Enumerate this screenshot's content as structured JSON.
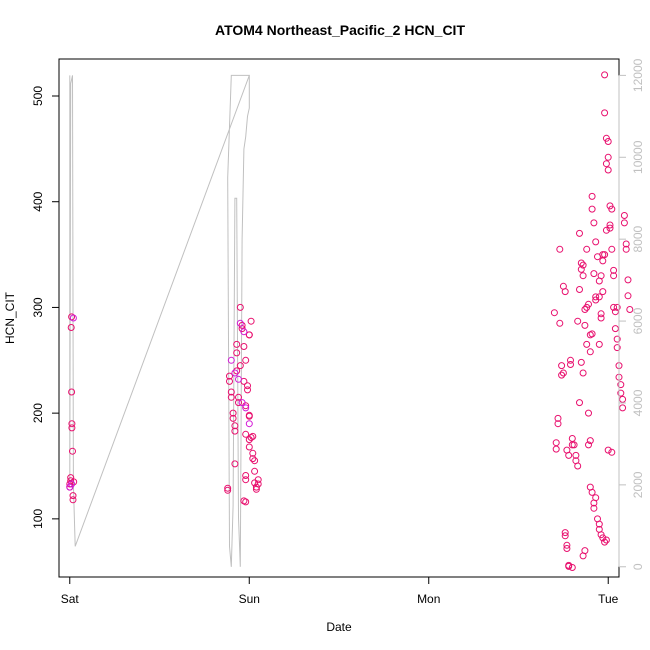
{
  "chart_data": {
    "type": "scatter",
    "title": "ATOM4 Northeast_Pacific_2 HCN_CIT",
    "xlabel": "Date",
    "ylabel": "HCN_CIT",
    "x_tick_labels": [
      "Sat",
      "Sun",
      "Mon",
      "Tue"
    ],
    "x_ticks": [
      0,
      1,
      2,
      3
    ],
    "x_unit": "days (Sat 00:00 = 0)",
    "xlim": [
      -0.06,
      3.06
    ],
    "ylim": [
      45,
      535
    ],
    "y_ticks": [
      100,
      200,
      300,
      400,
      500
    ],
    "y2_ticks": [
      0,
      2000,
      4000,
      6000,
      8000,
      10000,
      12000
    ],
    "y2lim": [
      -250,
      12400
    ],
    "grid": false,
    "series": [
      {
        "kind": "points",
        "color": "#e8106e",
        "points": [
          [
            0.0,
            130
          ],
          [
            0.0,
            133
          ],
          [
            0.005,
            136
          ],
          [
            0.005,
            139
          ],
          [
            0.008,
            281
          ],
          [
            0.01,
            291
          ],
          [
            0.01,
            220
          ],
          [
            0.012,
            186
          ],
          [
            0.012,
            190
          ],
          [
            0.015,
            164
          ],
          [
            0.018,
            122
          ],
          [
            0.018,
            118
          ],
          [
            0.022,
            135
          ],
          [
            0.88,
            127
          ],
          [
            0.88,
            129
          ],
          [
            0.89,
            230
          ],
          [
            0.89,
            235
          ],
          [
            0.9,
            215
          ],
          [
            0.9,
            220
          ],
          [
            0.91,
            200
          ],
          [
            0.91,
            195
          ],
          [
            0.92,
            188
          ],
          [
            0.92,
            183
          ],
          [
            0.93,
            240
          ],
          [
            0.93,
            257
          ],
          [
            0.93,
            265
          ],
          [
            0.94,
            215
          ],
          [
            0.94,
            210
          ],
          [
            0.95,
            245
          ],
          [
            0.95,
            300
          ],
          [
            0.96,
            280
          ],
          [
            0.96,
            283
          ],
          [
            0.97,
            263
          ],
          [
            0.97,
            230
          ],
          [
            0.98,
            207
          ],
          [
            0.98,
            180
          ],
          [
            0.98,
            250
          ],
          [
            0.99,
            222
          ],
          [
            0.99,
            226
          ],
          [
            1.0,
            198
          ],
          [
            1.0,
            197
          ],
          [
            1.0,
            175
          ],
          [
            1.0,
            168
          ],
          [
            0.97,
            117
          ],
          [
            0.98,
            116
          ],
          [
            0.98,
            141
          ],
          [
            0.98,
            137
          ],
          [
            1.0,
            274
          ],
          [
            1.0,
            274
          ],
          [
            1.01,
            287
          ],
          [
            1.01,
            177
          ],
          [
            1.02,
            178
          ],
          [
            1.02,
            162
          ],
          [
            1.02,
            157
          ],
          [
            1.03,
            155
          ],
          [
            1.03,
            145
          ],
          [
            1.03,
            134
          ],
          [
            1.04,
            130
          ],
          [
            1.04,
            128
          ],
          [
            1.05,
            137
          ],
          [
            1.05,
            133
          ],
          [
            0.92,
            152
          ],
          [
            2.7,
            295
          ],
          [
            2.71,
            172
          ],
          [
            2.71,
            166
          ],
          [
            2.72,
            190
          ],
          [
            2.72,
            195
          ],
          [
            2.73,
            355
          ],
          [
            2.73,
            285
          ],
          [
            2.74,
            245
          ],
          [
            2.74,
            236
          ],
          [
            2.75,
            238
          ],
          [
            2.75,
            320
          ],
          [
            2.76,
            315
          ],
          [
            2.76,
            84
          ],
          [
            2.76,
            87
          ],
          [
            2.77,
            75
          ],
          [
            2.77,
            72
          ],
          [
            2.77,
            165
          ],
          [
            2.78,
            160
          ],
          [
            2.78,
            55
          ],
          [
            2.78,
            56
          ],
          [
            2.79,
            250
          ],
          [
            2.79,
            246
          ],
          [
            2.8,
            176
          ],
          [
            2.8,
            170
          ],
          [
            2.81,
            170
          ],
          [
            2.82,
            160
          ],
          [
            2.82,
            155
          ],
          [
            2.83,
            150
          ],
          [
            2.83,
            287
          ],
          [
            2.84,
            317
          ],
          [
            2.84,
            370
          ],
          [
            2.85,
            342
          ],
          [
            2.85,
            336
          ],
          [
            2.86,
            340
          ],
          [
            2.86,
            330
          ],
          [
            2.87,
            298
          ],
          [
            2.87,
            283
          ],
          [
            2.88,
            355
          ],
          [
            2.88,
            300
          ],
          [
            2.89,
            200
          ],
          [
            2.89,
            303
          ],
          [
            2.9,
            258
          ],
          [
            2.91,
            405
          ],
          [
            2.91,
            393
          ],
          [
            2.92,
            380
          ],
          [
            2.92,
            332
          ],
          [
            2.93,
            307
          ],
          [
            2.93,
            362
          ],
          [
            2.94,
            348
          ],
          [
            2.95,
            310
          ],
          [
            2.95,
            265
          ],
          [
            2.96,
            290
          ],
          [
            2.96,
            294
          ],
          [
            2.97,
            350
          ],
          [
            2.97,
            315
          ],
          [
            2.98,
            520
          ],
          [
            2.98,
            484
          ],
          [
            2.99,
            460
          ],
          [
            2.99,
            436
          ],
          [
            3.0,
            457
          ],
          [
            3.0,
            442
          ],
          [
            3.0,
            430
          ],
          [
            3.01,
            396
          ],
          [
            3.01,
            378
          ],
          [
            3.02,
            393
          ],
          [
            3.02,
            355
          ],
          [
            3.03,
            330
          ],
          [
            3.03,
            300
          ],
          [
            3.04,
            296
          ],
          [
            3.04,
            280
          ],
          [
            3.05,
            270
          ],
          [
            3.05,
            262
          ],
          [
            3.06,
            245
          ],
          [
            3.06,
            234
          ],
          [
            3.07,
            227
          ],
          [
            3.07,
            219
          ],
          [
            3.08,
            213
          ],
          [
            3.08,
            205
          ],
          [
            3.09,
            380
          ],
          [
            3.09,
            387
          ],
          [
            3.1,
            360
          ],
          [
            3.1,
            355
          ],
          [
            3.11,
            326
          ],
          [
            3.11,
            311
          ],
          [
            3.12,
            298
          ],
          [
            2.8,
            54
          ],
          [
            2.86,
            65
          ],
          [
            2.87,
            70
          ],
          [
            2.9,
            130
          ],
          [
            2.91,
            125
          ],
          [
            2.92,
            110
          ],
          [
            2.92,
            115
          ],
          [
            2.93,
            120
          ],
          [
            2.94,
            100
          ],
          [
            2.95,
            90
          ],
          [
            2.95,
            95
          ],
          [
            2.96,
            85
          ],
          [
            2.97,
            82
          ],
          [
            2.98,
            78
          ],
          [
            2.99,
            80
          ],
          [
            3.0,
            165
          ],
          [
            3.02,
            163
          ],
          [
            2.89,
            170
          ],
          [
            2.9,
            174
          ],
          [
            2.84,
            210
          ],
          [
            2.85,
            248
          ],
          [
            2.86,
            238
          ],
          [
            2.88,
            265
          ],
          [
            2.9,
            274
          ],
          [
            2.91,
            275
          ],
          [
            2.93,
            310
          ],
          [
            2.95,
            325
          ],
          [
            2.96,
            330
          ],
          [
            2.97,
            344
          ],
          [
            2.98,
            350
          ],
          [
            2.99,
            373
          ],
          [
            3.01,
            375
          ],
          [
            3.03,
            335
          ],
          [
            3.05,
            300
          ]
        ]
      },
      {
        "kind": "points",
        "color": "#d31ad6",
        "points": [
          [
            0.0,
            130
          ],
          [
            0.01,
            133
          ],
          [
            0.02,
            290
          ],
          [
            0.9,
            250
          ],
          [
            0.92,
            238
          ],
          [
            0.94,
            232
          ],
          [
            0.96,
            210
          ],
          [
            0.98,
            205
          ],
          [
            1.0,
            190
          ],
          [
            0.95,
            285
          ],
          [
            0.97,
            277
          ]
        ]
      },
      {
        "kind": "line",
        "axis": "right",
        "color": "#c0c0c0",
        "points": [
          [
            0.0,
            12000
          ],
          [
            0.0,
            2100
          ],
          [
            0.005,
            11800
          ],
          [
            0.01,
            11900
          ],
          [
            0.015,
            12000
          ],
          [
            0.02,
            2000
          ],
          [
            0.03,
            500
          ],
          [
            1.0,
            12000
          ],
          [
            0.9,
            12000
          ],
          [
            0.88,
            9500
          ],
          [
            0.89,
            500
          ],
          [
            0.9,
            0
          ],
          [
            0.91,
            1500
          ],
          [
            0.92,
            9000
          ],
          [
            0.93,
            9000
          ],
          [
            0.94,
            1200
          ],
          [
            0.95,
            0
          ],
          [
            0.96,
            8000
          ],
          [
            0.97,
            10200
          ],
          [
            0.98,
            10500
          ],
          [
            0.99,
            11000
          ],
          [
            1.0,
            11200
          ],
          [
            1.0,
            12000
          ]
        ]
      }
    ]
  }
}
